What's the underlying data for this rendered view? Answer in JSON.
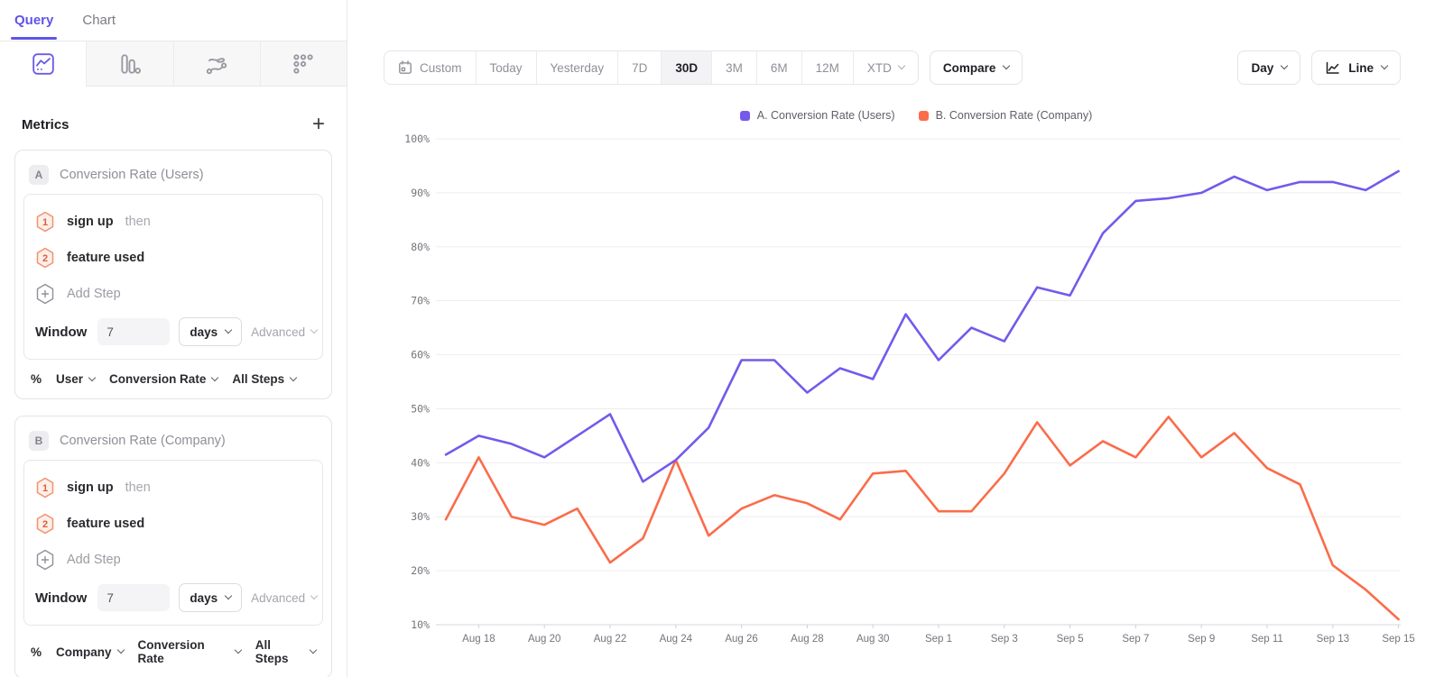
{
  "sidebar": {
    "tabs": [
      {
        "label": "Query"
      },
      {
        "label": "Chart"
      }
    ],
    "view_icons": [
      "insights-icon",
      "funnels-icon",
      "flows-icon",
      "retention-icon"
    ],
    "metrics_title": "Metrics",
    "add_metric_glyph": "+",
    "cards": [
      {
        "id": "A",
        "title": "Conversion Rate (Users)",
        "steps": [
          {
            "num": "1",
            "label": "sign up",
            "suffix": "then"
          },
          {
            "num": "2",
            "label": "feature used",
            "suffix": ""
          }
        ],
        "add_step_label": "Add Step",
        "window_label": "Window",
        "window_value": "7",
        "window_unit": "days",
        "advanced_label": "Advanced",
        "measure": {
          "prefix": "%",
          "entity": "User",
          "metric": "Conversion Rate",
          "steps": "All Steps"
        }
      },
      {
        "id": "B",
        "title": "Conversion Rate (Company)",
        "steps": [
          {
            "num": "1",
            "label": "sign up",
            "suffix": "then"
          },
          {
            "num": "2",
            "label": "feature used",
            "suffix": ""
          }
        ],
        "add_step_label": "Add Step",
        "window_label": "Window",
        "window_value": "7",
        "window_unit": "days",
        "advanced_label": "Advanced",
        "measure": {
          "prefix": "%",
          "entity": "Company",
          "metric": "Conversion Rate",
          "steps": "All Steps"
        }
      }
    ]
  },
  "toolbar": {
    "ranges": [
      {
        "label": "Custom"
      },
      {
        "label": "Today"
      },
      {
        "label": "Yesterday"
      },
      {
        "label": "7D"
      },
      {
        "label": "30D"
      },
      {
        "label": "3M"
      },
      {
        "label": "6M"
      },
      {
        "label": "12M"
      },
      {
        "label": "XTD"
      }
    ],
    "selected_range": "30D",
    "compare_label": "Compare",
    "granularity_label": "Day",
    "chart_type_label": "Line"
  },
  "legend": [
    {
      "label": "A. Conversion Rate (Users)",
      "color": "#7459EC"
    },
    {
      "label": "B. Conversion Rate (Company)",
      "color": "#FB6C4A"
    }
  ],
  "chart_data": {
    "type": "line",
    "x": [
      "Aug 17",
      "Aug 18",
      "Aug 19",
      "Aug 20",
      "Aug 21",
      "Aug 22",
      "Aug 23",
      "Aug 24",
      "Aug 25",
      "Aug 26",
      "Aug 27",
      "Aug 28",
      "Aug 29",
      "Aug 30",
      "Aug 31",
      "Sep 1",
      "Sep 2",
      "Sep 3",
      "Sep 4",
      "Sep 5",
      "Sep 6",
      "Sep 7",
      "Sep 8",
      "Sep 9",
      "Sep 10",
      "Sep 11",
      "Sep 12",
      "Sep 13",
      "Sep 14",
      "Sep 15"
    ],
    "x_tick_labels": [
      "Aug 18",
      "Aug 20",
      "Aug 22",
      "Aug 24",
      "Aug 26",
      "Aug 28",
      "Aug 30",
      "Sep 1",
      "Sep 3",
      "Sep 5",
      "Sep 7",
      "Sep 9",
      "Sep 11",
      "Sep 13",
      "Sep 15"
    ],
    "series": [
      {
        "name": "A. Conversion Rate (Users)",
        "color": "#7459EC",
        "values": [
          41.5,
          45,
          43.5,
          41,
          45,
          49,
          36.5,
          40.5,
          46.5,
          59,
          59,
          53,
          57.5,
          55.5,
          67.5,
          59,
          65,
          62.5,
          72.5,
          71,
          82.5,
          88.5,
          89,
          90,
          93,
          90.5,
          92,
          92,
          90.5,
          94
        ]
      },
      {
        "name": "B. Conversion Rate (Company)",
        "color": "#FB6C4A",
        "values": [
          29.5,
          41,
          30,
          28.5,
          31.5,
          21.5,
          26,
          40.5,
          26.5,
          31.5,
          34,
          32.5,
          29.5,
          38,
          38.5,
          31,
          31,
          38,
          47.5,
          39.5,
          44,
          41,
          48.5,
          41,
          45.5,
          39,
          36,
          21,
          16.5,
          11
        ]
      }
    ],
    "ylabel_format": "percent",
    "ylim": [
      10,
      100
    ],
    "ytick_step": 10,
    "grid": true,
    "legend_position": "top-center"
  }
}
